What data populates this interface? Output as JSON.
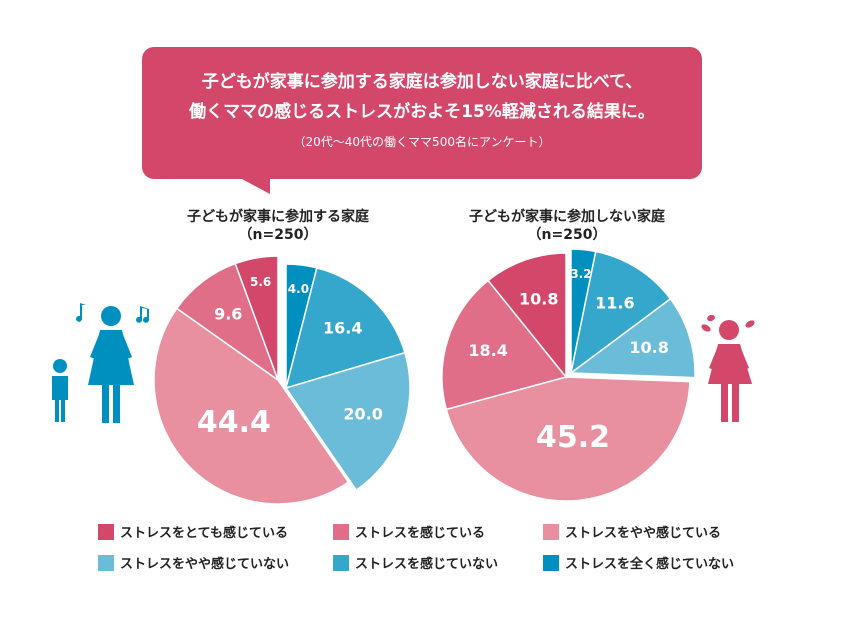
{
  "banner": {
    "line1": "子どもが家事に参加する家庭は参加しない家庭に比べて、",
    "line2": "働くママの感じるストレスがおよそ15%軽減される結果に。",
    "note": "（20代～40代の働くママ500名にアンケート）"
  },
  "chart_data": [
    {
      "type": "pie",
      "title": "子どもが家事に参加する家庭",
      "subtitle": "（n=250）",
      "order": "clockwise from top",
      "values": [
        4.0,
        16.4,
        20.0,
        44.4,
        9.6,
        5.6
      ],
      "categories": [
        "ストレスを全く感じていない",
        "ストレスを感じていない",
        "ストレスをやや感じていない",
        "ストレスをやや感じている",
        "ストレスを感じている",
        "ストレスをとても感じている"
      ],
      "labels": [
        "4.0",
        "16.4",
        "20.0",
        "44.4",
        "9.6",
        "5.6"
      ],
      "exploded": "blue group"
    },
    {
      "type": "pie",
      "title": "子どもが家事に参加しない家庭",
      "subtitle": "（n=250）",
      "order": "clockwise from top",
      "values": [
        3.2,
        11.6,
        10.8,
        45.2,
        18.4,
        10.8
      ],
      "categories": [
        "ストレスを全く感じていない",
        "ストレスを感じていない",
        "ストレスをやや感じていない",
        "ストレスをやや感じている",
        "ストレスを感じている",
        "ストレスをとても感じている"
      ],
      "labels": [
        "3.2",
        "11.6",
        "10.8",
        "45.2",
        "18.4",
        "10.8"
      ],
      "exploded": "blue group"
    }
  ],
  "colors": {
    "ストレスを全く感じていない": "#0090bf",
    "ストレスを感じていない": "#35a6cc",
    "ストレスをやや感じていない": "#6bbcd8",
    "ストレスをやや感じている": "#e88fa0",
    "ストレスを感じている": "#e06e88",
    "ストレスをとても感じている": "#d2476a"
  },
  "legend": [
    {
      "label": "ストレスをとても感じている",
      "color": "#d2476a"
    },
    {
      "label": "ストレスを感じている",
      "color": "#e06e88"
    },
    {
      "label": "ストレスをやや感じている",
      "color": "#e88fa0"
    },
    {
      "label": "ストレスをやや感じていない",
      "color": "#6bbcd8"
    },
    {
      "label": "ストレスを感じていない",
      "color": "#35a6cc"
    },
    {
      "label": "ストレスを全く感じていない",
      "color": "#0090bf"
    }
  ],
  "icons": [
    "mother-child-music-icon",
    "stressed-girl-icon"
  ]
}
